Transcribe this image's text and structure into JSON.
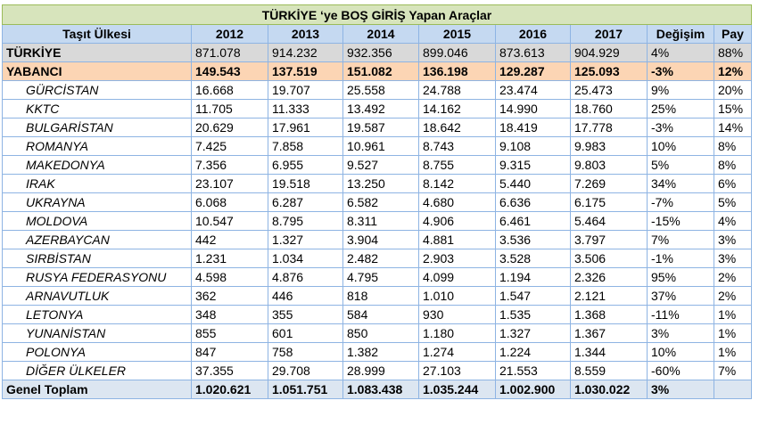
{
  "title": "TÜRKİYE ‘ye BOŞ GİRİŞ Yapan Araçlar",
  "columns": [
    "Taşıt Ülkesi",
    "2012",
    "2013",
    "2014",
    "2015",
    "2016",
    "2017",
    "Değişim",
    "Pay"
  ],
  "turkiye": {
    "name": "TÜRKİYE",
    "values": [
      "871.078",
      "914.232",
      "932.356",
      "899.046",
      "873.613",
      "904.929",
      "4%",
      "88%"
    ]
  },
  "yabanci": {
    "name": "YABANCI",
    "values": [
      "149.543",
      "137.519",
      "151.082",
      "136.198",
      "129.287",
      "125.093",
      "-3%",
      "12%"
    ]
  },
  "countries": [
    {
      "name": "GÜRCİSTAN",
      "values": [
        "16.668",
        "19.707",
        "25.558",
        "24.788",
        "23.474",
        "25.473",
        "9%",
        "20%"
      ]
    },
    {
      "name": "KKTC",
      "values": [
        "11.705",
        "11.333",
        "13.492",
        "14.162",
        "14.990",
        "18.760",
        "25%",
        "15%"
      ]
    },
    {
      "name": "BULGARİSTAN",
      "values": [
        "20.629",
        "17.961",
        "19.587",
        "18.642",
        "18.419",
        "17.778",
        "-3%",
        "14%"
      ]
    },
    {
      "name": "ROMANYA",
      "values": [
        "7.425",
        "7.858",
        "10.961",
        "8.743",
        "9.108",
        "9.983",
        "10%",
        "8%"
      ]
    },
    {
      "name": "MAKEDONYA",
      "values": [
        "7.356",
        "6.955",
        "9.527",
        "8.755",
        "9.315",
        "9.803",
        "5%",
        "8%"
      ]
    },
    {
      "name": "IRAK",
      "values": [
        "23.107",
        "19.518",
        "13.250",
        "8.142",
        "5.440",
        "7.269",
        "34%",
        "6%"
      ]
    },
    {
      "name": "UKRAYNA",
      "values": [
        "6.068",
        "6.287",
        "6.582",
        "4.680",
        "6.636",
        "6.175",
        "-7%",
        "5%"
      ]
    },
    {
      "name": "MOLDOVA",
      "values": [
        "10.547",
        "8.795",
        "8.311",
        "4.906",
        "6.461",
        "5.464",
        "-15%",
        "4%"
      ]
    },
    {
      "name": "AZERBAYCAN",
      "values": [
        "442",
        "1.327",
        "3.904",
        "4.881",
        "3.536",
        "3.797",
        "7%",
        "3%"
      ]
    },
    {
      "name": "SIRBİSTAN",
      "values": [
        "1.231",
        "1.034",
        "2.482",
        "2.903",
        "3.528",
        "3.506",
        "-1%",
        "3%"
      ]
    },
    {
      "name": "RUSYA FEDERASYONU",
      "values": [
        "4.598",
        "4.876",
        "4.795",
        "4.099",
        "1.194",
        "2.326",
        "95%",
        "2%"
      ]
    },
    {
      "name": "ARNAVUTLUK",
      "values": [
        "362",
        "446",
        "818",
        "1.010",
        "1.547",
        "2.121",
        "37%",
        "2%"
      ]
    },
    {
      "name": "LETONYA",
      "values": [
        "348",
        "355",
        "584",
        "930",
        "1.535",
        "1.368",
        "-11%",
        "1%"
      ]
    },
    {
      "name": "YUNANİSTAN",
      "values": [
        "855",
        "601",
        "850",
        "1.180",
        "1.327",
        "1.367",
        "3%",
        "1%"
      ]
    },
    {
      "name": "POLONYA",
      "values": [
        "847",
        "758",
        "1.382",
        "1.274",
        "1.224",
        "1.344",
        "10%",
        "1%"
      ]
    },
    {
      "name": "DİĞER ÜLKELER",
      "values": [
        "37.355",
        "29.708",
        "28.999",
        "27.103",
        "21.553",
        "8.559",
        "-60%",
        "7%"
      ]
    }
  ],
  "total": {
    "name": "Genel Toplam",
    "values": [
      "1.020.621",
      "1.051.751",
      "1.083.438",
      "1.035.244",
      "1.002.900",
      "1.030.022",
      "3%",
      ""
    ]
  }
}
